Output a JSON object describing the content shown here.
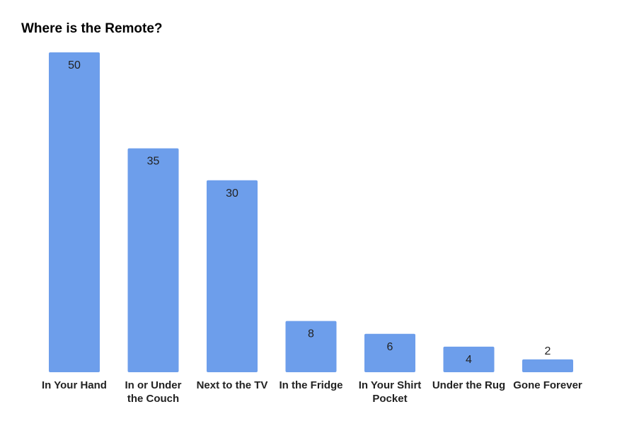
{
  "chart_data": {
    "type": "bar",
    "title": "Where is the Remote?",
    "categories": [
      [
        "In Your Hand"
      ],
      [
        "In or Under",
        "the Couch"
      ],
      [
        "Next to the TV"
      ],
      [
        "In the Fridge"
      ],
      [
        "In Your Shirt",
        "Pocket"
      ],
      [
        "Under the Rug"
      ],
      [
        "Gone Forever"
      ]
    ],
    "values": [
      50,
      35,
      30,
      8,
      6,
      4,
      2
    ],
    "ylim": [
      0,
      50
    ],
    "grid": false,
    "legend": "none",
    "bar_color": "#6d9eeb",
    "data_labels": true
  }
}
